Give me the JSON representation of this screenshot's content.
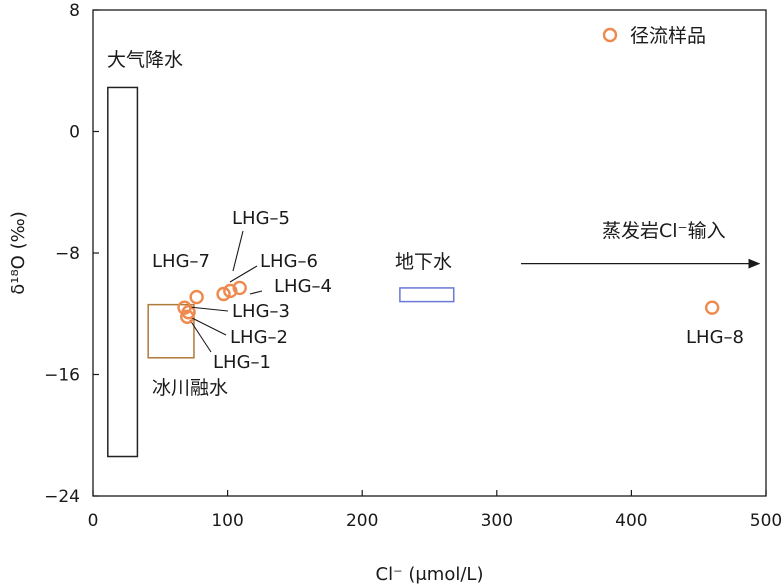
{
  "chart_data": {
    "type": "scatter",
    "title": "",
    "xlabel": "Cl⁻ (μmol/L)",
    "ylabel": "δ¹⁸O (‰)",
    "xlim": [
      0,
      500
    ],
    "ylim": [
      -24,
      8
    ],
    "x_ticks": [
      0,
      100,
      200,
      300,
      400,
      500
    ],
    "y_ticks": [
      8,
      0,
      -8,
      -16,
      -24
    ],
    "x_tick_labels": [
      "0",
      "100",
      "200",
      "300",
      "400",
      "500"
    ],
    "y_tick_labels": [
      "8",
      "0",
      "−8",
      "−16",
      "−24"
    ],
    "grid": false,
    "legend_position": "top-right",
    "series": [
      {
        "name": "径流样品",
        "marker": "open-circle",
        "color": "#ef8a4e",
        "points": [
          {
            "label": "LHG–1",
            "x": 70,
            "y": -12.2
          },
          {
            "label": "LHG–2",
            "x": 71,
            "y": -11.9
          },
          {
            "label": "LHG–3",
            "x": 68,
            "y": -11.6
          },
          {
            "label": "LHG–4",
            "x": 109,
            "y": -10.3
          },
          {
            "label": "LHG–5",
            "x": 102,
            "y": -10.5
          },
          {
            "label": "LHG–6",
            "x": 97,
            "y": -10.7
          },
          {
            "label": "LHG–7",
            "x": 77,
            "y": -10.9
          },
          {
            "label": "LHG–8",
            "x": 460,
            "y": -11.6
          }
        ]
      }
    ],
    "regions": [
      {
        "name": "大气降水",
        "color": "#222222",
        "x": [
          11,
          33
        ],
        "y": [
          -21.4,
          2.9
        ]
      },
      {
        "name": "冰川融水",
        "color": "#b07a3a",
        "x": [
          41,
          75
        ],
        "y": [
          -14.9,
          -11.4
        ]
      },
      {
        "name": "地下水",
        "color": "#6b78d6",
        "x": [
          228,
          268
        ],
        "y": [
          -11.2,
          -10.3
        ]
      }
    ],
    "annotations": [
      {
        "text": "蒸发岩Cl⁻输入",
        "arrow": "right",
        "x": [
          318,
          495
        ],
        "y": -8.7
      }
    ]
  }
}
